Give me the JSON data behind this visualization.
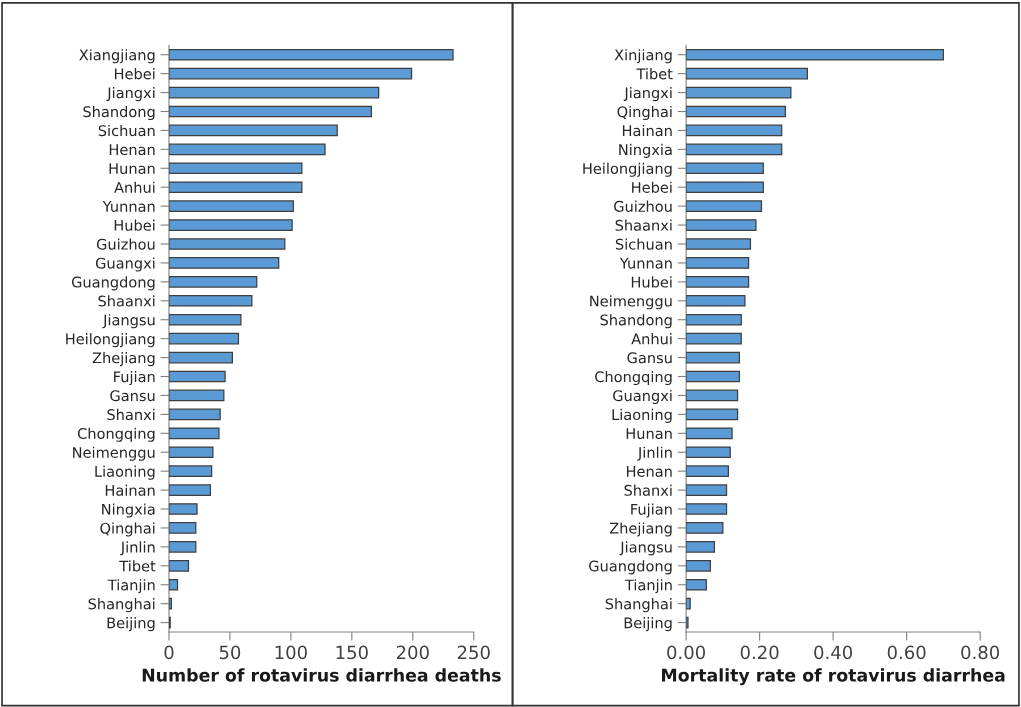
{
  "chart_data": [
    {
      "type": "bar",
      "orientation": "horizontal",
      "xlabel": "Number of rotavirus diarrhea deaths",
      "categories": [
        "Xiangjiang",
        "Hebei",
        "Jiangxi",
        "Shandong",
        "Sichuan",
        "Henan",
        "Hunan",
        "Anhui",
        "Yunnan",
        "Hubei",
        "Guizhou",
        "Guangxi",
        "Guangdong",
        "Shaanxi",
        "Jiangsu",
        "Heilongjiang",
        "Zhejiang",
        "Fujian",
        "Gansu",
        "Shanxi",
        "Chongqing",
        "Neimenggu",
        "Liaoning",
        "Hainan",
        "Ningxia",
        "Qinghai",
        "Jinlin",
        "Tibet",
        "Tianjin",
        "Shanghai",
        "Beijing"
      ],
      "values": [
        233,
        199,
        172,
        166,
        138,
        128,
        109,
        109,
        102,
        101,
        95,
        90,
        72,
        68,
        59,
        57,
        52,
        46,
        45,
        42,
        41,
        36,
        35,
        34,
        23,
        22,
        22,
        16,
        7,
        2,
        1
      ],
      "color": "#5b9bd5",
      "xlim": [
        0,
        250
      ],
      "xticks": [
        0,
        50,
        100,
        150,
        200,
        250
      ],
      "grid": false
    },
    {
      "type": "bar",
      "orientation": "horizontal",
      "xlabel": "Mortality rate of rotavirus diarrhea",
      "categories": [
        "Xinjiang",
        "Tibet",
        "Jiangxi",
        "Qinghai",
        "Hainan",
        "Ningxia",
        "Heilongjiang",
        "Hebei",
        "Guizhou",
        "Shaanxi",
        "Sichuan",
        "Yunnan",
        "Hubei",
        "Neimenggu",
        "Shandong",
        "Anhui",
        "Gansu",
        "Chongqing",
        "Guangxi",
        "Liaoning",
        "Hunan",
        "Jinlin",
        "Henan",
        "Shanxi",
        "Fujian",
        "Zhejiang",
        "Jiangsu",
        "Guangdong",
        "Tianjin",
        "Shanghai",
        "Beijing"
      ],
      "values": [
        0.7,
        0.33,
        0.285,
        0.27,
        0.26,
        0.26,
        0.21,
        0.21,
        0.205,
        0.19,
        0.175,
        0.17,
        0.17,
        0.16,
        0.15,
        0.15,
        0.145,
        0.145,
        0.14,
        0.14,
        0.125,
        0.12,
        0.115,
        0.11,
        0.11,
        0.1,
        0.077,
        0.066,
        0.055,
        0.011,
        0.005
      ],
      "color": "#5b9bd5",
      "xlim": [
        0,
        0.8
      ],
      "xticks": [
        {
          "value": 0,
          "label": "0.00"
        },
        {
          "value": 0.2,
          "label": "0.20"
        },
        {
          "value": 0.4,
          "label": "0.40"
        },
        {
          "value": 0.6,
          "label": "0.60"
        },
        {
          "value": 0.8,
          "label": "0.80"
        }
      ],
      "grid": false
    }
  ]
}
